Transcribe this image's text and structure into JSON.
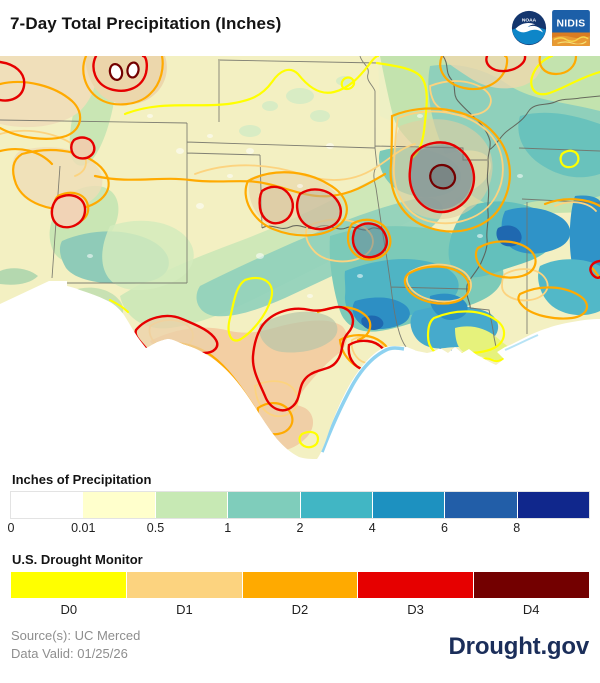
{
  "header": {
    "title": "7-Day Total Precipitation (Inches)",
    "noaa_logo": "NOAA",
    "nidis_logo": "NIDIS"
  },
  "map": {
    "description": "7-day total precipitation raster over the south-central United States (New Mexico, Texas, Oklahoma, Kansas, Missouri, Arkansas, Louisiana, Mississippi) with U.S. Drought Monitor contours overlaid"
  },
  "precip_legend": {
    "title": "Inches of Precipitation",
    "ticks": [
      "0",
      "0.01",
      "0.5",
      "1",
      "2",
      "4",
      "6",
      "8"
    ],
    "colors": [
      "#ffffff",
      "#ffffcc",
      "#c7e9b4",
      "#7fcdbb",
      "#41b6c4",
      "#1d91c0",
      "#225ea8",
      "#10278c"
    ]
  },
  "drought_legend": {
    "title": "U.S. Drought Monitor",
    "classes": [
      {
        "label": "D0",
        "color": "#ffff00"
      },
      {
        "label": "D1",
        "color": "#fcd37f"
      },
      {
        "label": "D2",
        "color": "#ffaa00"
      },
      {
        "label": "D3",
        "color": "#e60000"
      },
      {
        "label": "D4",
        "color": "#730000"
      }
    ]
  },
  "footer": {
    "source": "Source(s): UC Merced",
    "data_valid": "Data Valid: 01/25/26",
    "brand": "Drought.gov"
  }
}
